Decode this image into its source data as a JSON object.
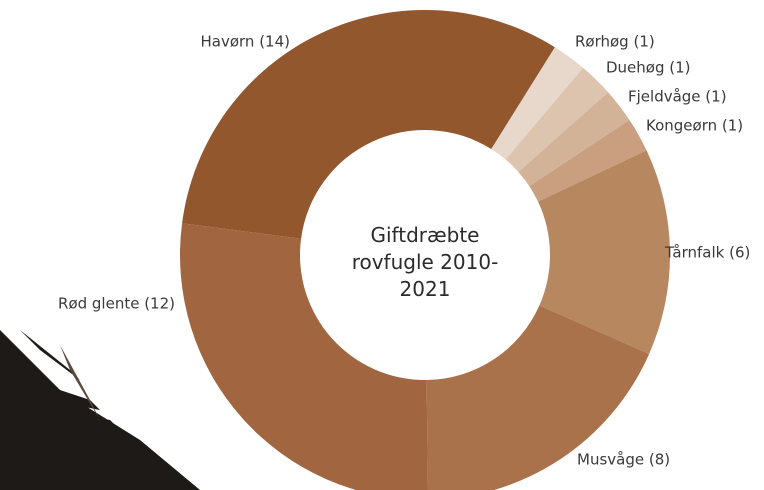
{
  "chart_data": {
    "type": "donut",
    "title": "Giftdræbte rovfugle 2010-2021",
    "values": [
      1,
      1,
      1,
      1,
      6,
      8,
      12,
      14
    ],
    "value_labels": [
      "Rørhøg (1)",
      "Duehøg (1)",
      "Fjeldvåge (1)",
      "Kongeørn (1)",
      "Tårnfalk (6)",
      "Musvåge (8)",
      "Rød glente (12)",
      "Havørn (14)"
    ],
    "colors": [
      "#e7d8cb",
      "#dcc4af",
      "#d3b398",
      "#c99f80",
      "#b7875f",
      "#a9724a",
      "#a1663f",
      "#93572e"
    ]
  }
}
